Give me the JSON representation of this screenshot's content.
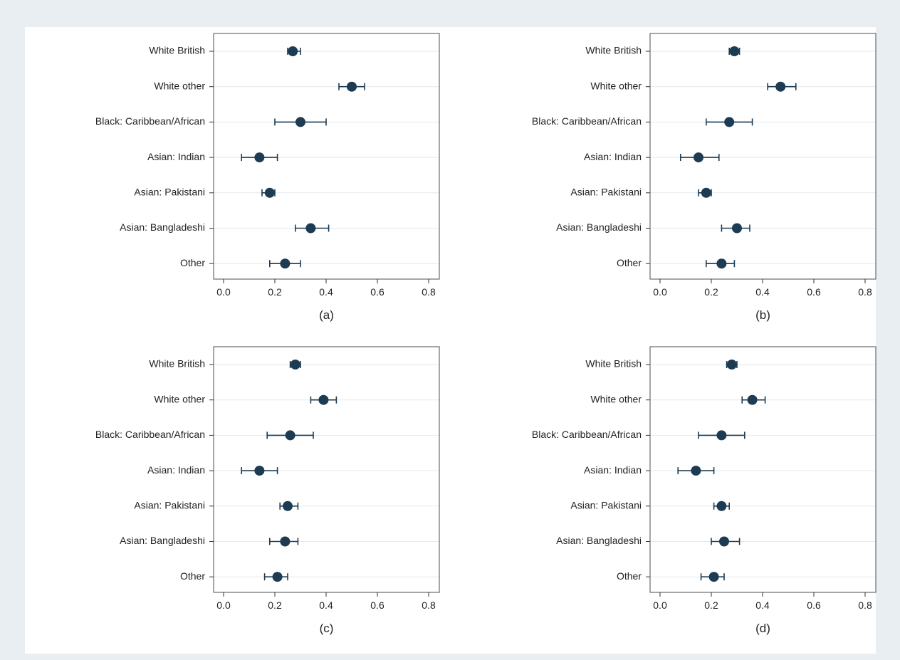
{
  "chart_data": [
    {
      "type": "scatter",
      "caption": "(a)",
      "categories": [
        "White British",
        "White other",
        "Black: Caribbean/African",
        "Asian: Indian",
        "Asian: Pakistani",
        "Asian: Bangladeshi",
        "Other"
      ],
      "values": [
        0.27,
        0.5,
        0.3,
        0.14,
        0.18,
        0.34,
        0.24
      ],
      "ci_low": [
        0.25,
        0.45,
        0.2,
        0.07,
        0.15,
        0.28,
        0.18
      ],
      "ci_high": [
        0.3,
        0.55,
        0.4,
        0.21,
        0.2,
        0.41,
        0.3
      ],
      "xlim": [
        0,
        0.8
      ],
      "xticks": [
        "0.0",
        "0.2",
        "0.4",
        "0.6",
        "0.8"
      ],
      "grid": true
    },
    {
      "type": "scatter",
      "caption": "(b)",
      "categories": [
        "White British",
        "White other",
        "Black: Caribbean/African",
        "Asian: Indian",
        "Asian: Pakistani",
        "Asian: Bangladeshi",
        "Other"
      ],
      "values": [
        0.29,
        0.47,
        0.27,
        0.15,
        0.18,
        0.3,
        0.24
      ],
      "ci_low": [
        0.27,
        0.42,
        0.18,
        0.08,
        0.15,
        0.24,
        0.18
      ],
      "ci_high": [
        0.31,
        0.53,
        0.36,
        0.23,
        0.2,
        0.35,
        0.29
      ],
      "xlim": [
        0,
        0.8
      ],
      "xticks": [
        "0.0",
        "0.2",
        "0.4",
        "0.6",
        "0.8"
      ],
      "grid": true
    },
    {
      "type": "scatter",
      "caption": "(c)",
      "categories": [
        "White British",
        "White other",
        "Black: Caribbean/African",
        "Asian: Indian",
        "Asian: Pakistani",
        "Asian: Bangladeshi",
        "Other"
      ],
      "values": [
        0.28,
        0.39,
        0.26,
        0.14,
        0.25,
        0.24,
        0.21
      ],
      "ci_low": [
        0.26,
        0.34,
        0.17,
        0.07,
        0.22,
        0.18,
        0.16
      ],
      "ci_high": [
        0.3,
        0.44,
        0.35,
        0.21,
        0.29,
        0.29,
        0.25
      ],
      "xlim": [
        0,
        0.8
      ],
      "xticks": [
        "0.0",
        "0.2",
        "0.4",
        "0.6",
        "0.8"
      ],
      "grid": true
    },
    {
      "type": "scatter",
      "caption": "(d)",
      "categories": [
        "White British",
        "White other",
        "Black: Caribbean/African",
        "Asian: Indian",
        "Asian: Pakistani",
        "Asian: Bangladeshi",
        "Other"
      ],
      "values": [
        0.28,
        0.36,
        0.24,
        0.14,
        0.24,
        0.25,
        0.21
      ],
      "ci_low": [
        0.26,
        0.32,
        0.15,
        0.07,
        0.21,
        0.2,
        0.16
      ],
      "ci_high": [
        0.3,
        0.41,
        0.33,
        0.21,
        0.27,
        0.31,
        0.25
      ],
      "xlim": [
        0,
        0.8
      ],
      "xticks": [
        "0.0",
        "0.2",
        "0.4",
        "0.6",
        "0.8"
      ],
      "grid": true
    }
  ],
  "colors": {
    "marker": "#1d3b52",
    "background": "#e9eef3",
    "panel": "#ffffff"
  }
}
